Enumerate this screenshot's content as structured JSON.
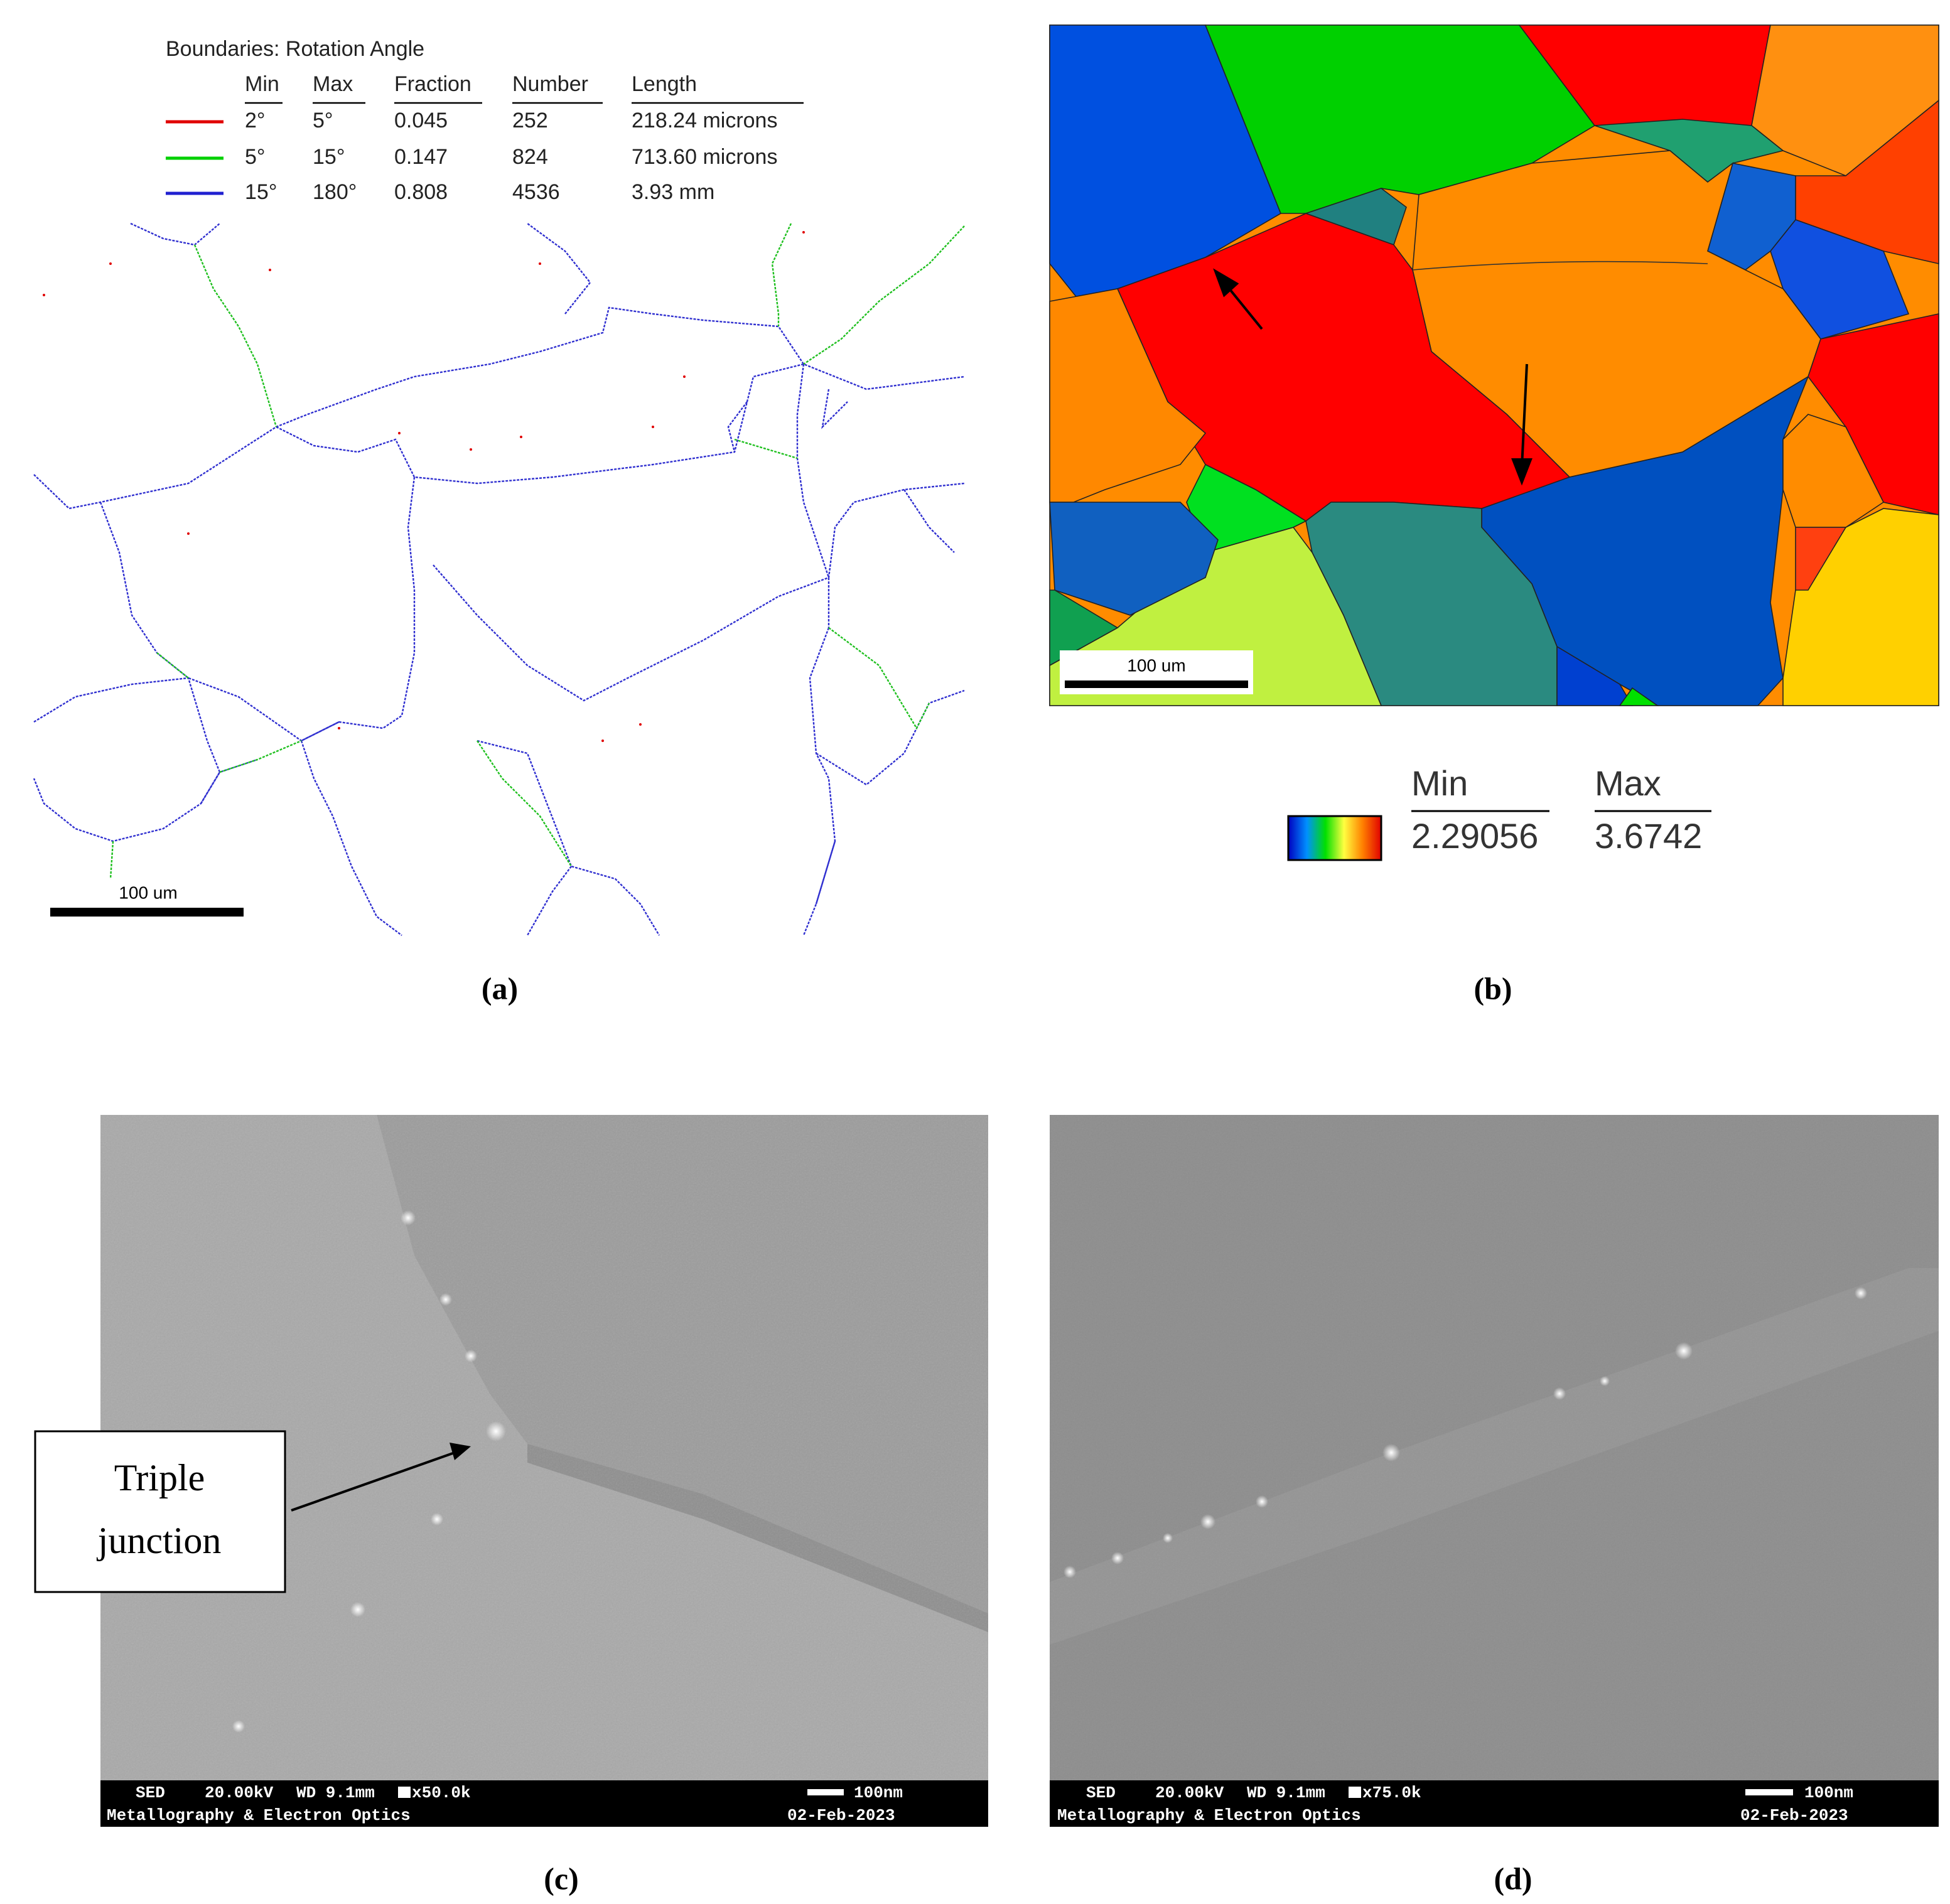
{
  "panel_a": {
    "label": "(a)",
    "legend_title": "Boundaries: Rotation Angle",
    "headers": [
      "Min",
      "Max",
      "Fraction",
      "Number",
      "Length"
    ],
    "rows": [
      [
        "2°",
        "5°",
        "0.045",
        "252",
        "218.24 microns"
      ],
      [
        "5°",
        "15°",
        "0.147",
        "824",
        "713.60 microns"
      ],
      [
        "15°",
        "180°",
        "0.808",
        "4536",
        "3.93 mm"
      ]
    ],
    "scale_bar": "100 um"
  },
  "panel_b": {
    "label": "(b)",
    "scale_bar": "100 um",
    "colorbar": {
      "min_header": "Min",
      "max_header": "Max",
      "min": "2.29056",
      "max": "3.6742"
    }
  },
  "panel_c": {
    "label": "(c)",
    "annotation": [
      "Triple",
      "junction"
    ],
    "info": {
      "detector": "SED",
      "voltage": "20.00kV",
      "wd": "WD 9.1mm",
      "magnification": "x50.0k",
      "scale": "100nm",
      "lab": "Metallography & Electron Optics",
      "date": "02-Feb-2023"
    }
  },
  "panel_d": {
    "label": "(d)",
    "info": {
      "detector": "SED",
      "voltage": "20.00kV",
      "wd": "WD 9.1mm",
      "magnification": "x75.0k",
      "scale": "100nm",
      "lab": "Metallography & Electron Optics",
      "date": "02-Feb-2023"
    }
  }
}
